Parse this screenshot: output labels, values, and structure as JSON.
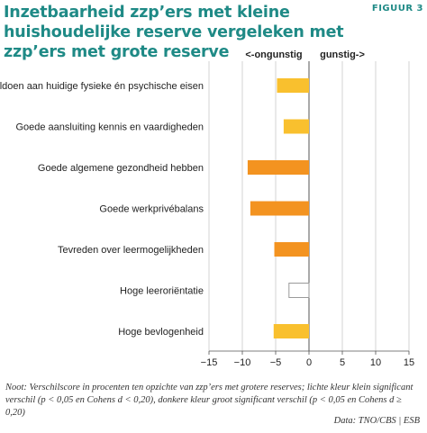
{
  "header": {
    "title": "Inzetbaarheid zzp’ers met kleine huishoudelijke reserve vergeleken met zzp’ers met grote reserve",
    "figure_label": "FIGUUR 3"
  },
  "chart_data": {
    "type": "bar",
    "orientation": "horizontal",
    "direction_labels": {
      "left": "<-ongunstig",
      "right": "gunstig->"
    },
    "categories": [
      "Voldoen aan huidige fysieke én psychische eisen",
      "Goede aansluiting kennis en vaardigheden",
      "Goede algemene gezondheid hebben",
      "Goede werkprivébalans",
      "Tevreden over leermogelijkheden",
      "Hoge leeroriëntatie",
      "Hoge bevlogenheid"
    ],
    "values": [
      -4.8,
      -3.8,
      -9.2,
      -8.8,
      -5.2,
      -3.0,
      -5.3
    ],
    "significance": [
      "klein",
      "klein",
      "groot",
      "groot",
      "groot",
      "niet significant",
      "klein"
    ],
    "colors": {
      "klein": "#f9c02e",
      "groot": "#f39320",
      "niet significant": "#ffffff",
      "border": "#9a9a9a"
    },
    "xlim": [
      -15,
      15
    ],
    "x_ticks": [
      "−15",
      "−10",
      "−5",
      "0",
      "5",
      "10",
      "15"
    ],
    "grid": true
  },
  "footer": {
    "note": "Noot: Verschilscore in procenten ten opzichte van zzp’ers met grotere reserves; lichte kleur klein significant verschil (p < 0,05 en Cohens d < 0,20), donkere kleur groot significant verschil (p < 0,05 en Cohens d ≥ 0,20)",
    "source": "Data: TNO/CBS | ESB"
  }
}
